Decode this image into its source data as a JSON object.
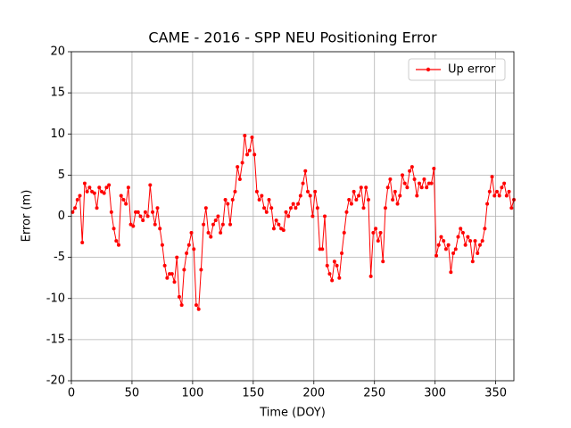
{
  "chart_data": {
    "type": "line",
    "title": "CAME - 2016 - SPP NEU Positioning Error",
    "xlabel": "Time (DOY)",
    "ylabel": "Error (m)",
    "x": [
      1,
      3,
      5,
      7,
      9,
      11,
      13,
      15,
      17,
      19,
      21,
      23,
      25,
      27,
      29,
      31,
      33,
      35,
      37,
      39,
      41,
      43,
      45,
      47,
      49,
      51,
      53,
      55,
      57,
      59,
      61,
      63,
      65,
      67,
      69,
      71,
      73,
      75,
      77,
      79,
      81,
      83,
      85,
      87,
      89,
      91,
      93,
      95,
      97,
      99,
      101,
      103,
      105,
      107,
      109,
      111,
      113,
      115,
      117,
      119,
      121,
      123,
      125,
      127,
      129,
      131,
      133,
      135,
      137,
      139,
      141,
      143,
      145,
      147,
      149,
      151,
      153,
      155,
      157,
      159,
      161,
      163,
      165,
      167,
      169,
      171,
      173,
      175,
      177,
      179,
      181,
      183,
      185,
      187,
      189,
      191,
      193,
      195,
      197,
      199,
      201,
      203,
      205,
      207,
      209,
      211,
      213,
      215,
      217,
      219,
      221,
      223,
      225,
      227,
      229,
      231,
      233,
      235,
      237,
      239,
      241,
      243,
      245,
      247,
      249,
      251,
      253,
      255,
      257,
      259,
      261,
      263,
      265,
      267,
      269,
      271,
      273,
      275,
      277,
      279,
      281,
      283,
      285,
      287,
      289,
      291,
      293,
      295,
      297,
      299,
      301,
      303,
      305,
      307,
      309,
      311,
      313,
      315,
      317,
      319,
      321,
      323,
      325,
      327,
      329,
      331,
      333,
      335,
      337,
      339,
      341,
      343,
      345,
      347,
      349,
      351,
      353,
      355,
      357,
      359,
      361,
      363,
      365
    ],
    "series": [
      {
        "name": "Up error",
        "color": "#ff0000",
        "values": [
          0.5,
          1,
          2,
          2.5,
          -3.2,
          4,
          3,
          3.5,
          3,
          2.8,
          1,
          3.5,
          3,
          2.8,
          3.5,
          3.8,
          0.5,
          -1.5,
          -3,
          -3.5,
          2.5,
          2,
          1.5,
          3.5,
          -1,
          -1.2,
          0.5,
          0.5,
          0,
          -0.5,
          0.5,
          0,
          3.8,
          0.5,
          -1,
          1,
          -1.5,
          -3.5,
          -6,
          -7.5,
          -7,
          -7,
          -8,
          -5,
          -9.8,
          -10.8,
          -6.5,
          -4.5,
          -3.5,
          -2,
          -4,
          -10.8,
          -11.3,
          -6.5,
          -1,
          1,
          -2,
          -2.5,
          -1,
          -0.5,
          0,
          -2,
          -1,
          2,
          1.5,
          -1,
          2,
          3,
          6,
          4.5,
          6.5,
          9.8,
          7.5,
          8,
          9.6,
          7.5,
          3,
          2,
          2.5,
          1,
          0.5,
          2,
          1,
          -1.5,
          -0.5,
          -1,
          -1.5,
          -1.7,
          0.5,
          0,
          1,
          1.5,
          1,
          1.5,
          2.5,
          4,
          5.5,
          3,
          2.5,
          0,
          3,
          1,
          -4,
          -4,
          0,
          -6,
          -7,
          -7.8,
          -5.5,
          -6,
          -7.5,
          -4.5,
          -2,
          0.5,
          2,
          1.5,
          3,
          2,
          2.5,
          3.5,
          1,
          3.5,
          2,
          -7.3,
          -2,
          -1.5,
          -3,
          -2,
          -5.5,
          1,
          3.5,
          4.5,
          2,
          3,
          1.5,
          2.5,
          5,
          4,
          3.5,
          5.5,
          6,
          4.5,
          2.5,
          4,
          3.5,
          4.5,
          3.5,
          4,
          4,
          5.8,
          -4.8,
          -3.5,
          -2.5,
          -3,
          -4,
          -3.5,
          -6.8,
          -4.5,
          -4,
          -2.5,
          -1.5,
          -2,
          -3.5,
          -2.5,
          -3,
          -5.5,
          -3,
          -4.5,
          -3.5,
          -3,
          -1.5,
          1.5,
          3,
          4.8,
          2.5,
          3,
          2.5,
          3.5,
          4,
          2.5,
          3,
          1,
          2
        ]
      }
    ],
    "xlim": [
      0,
      365
    ],
    "xticks": [
      0,
      50,
      100,
      150,
      200,
      250,
      300,
      350
    ],
    "ylim": [
      -20,
      20
    ],
    "yticks": [
      -20,
      -15,
      -10,
      -5,
      0,
      5,
      10,
      15,
      20
    ],
    "grid": true,
    "legend": "upper right"
  }
}
